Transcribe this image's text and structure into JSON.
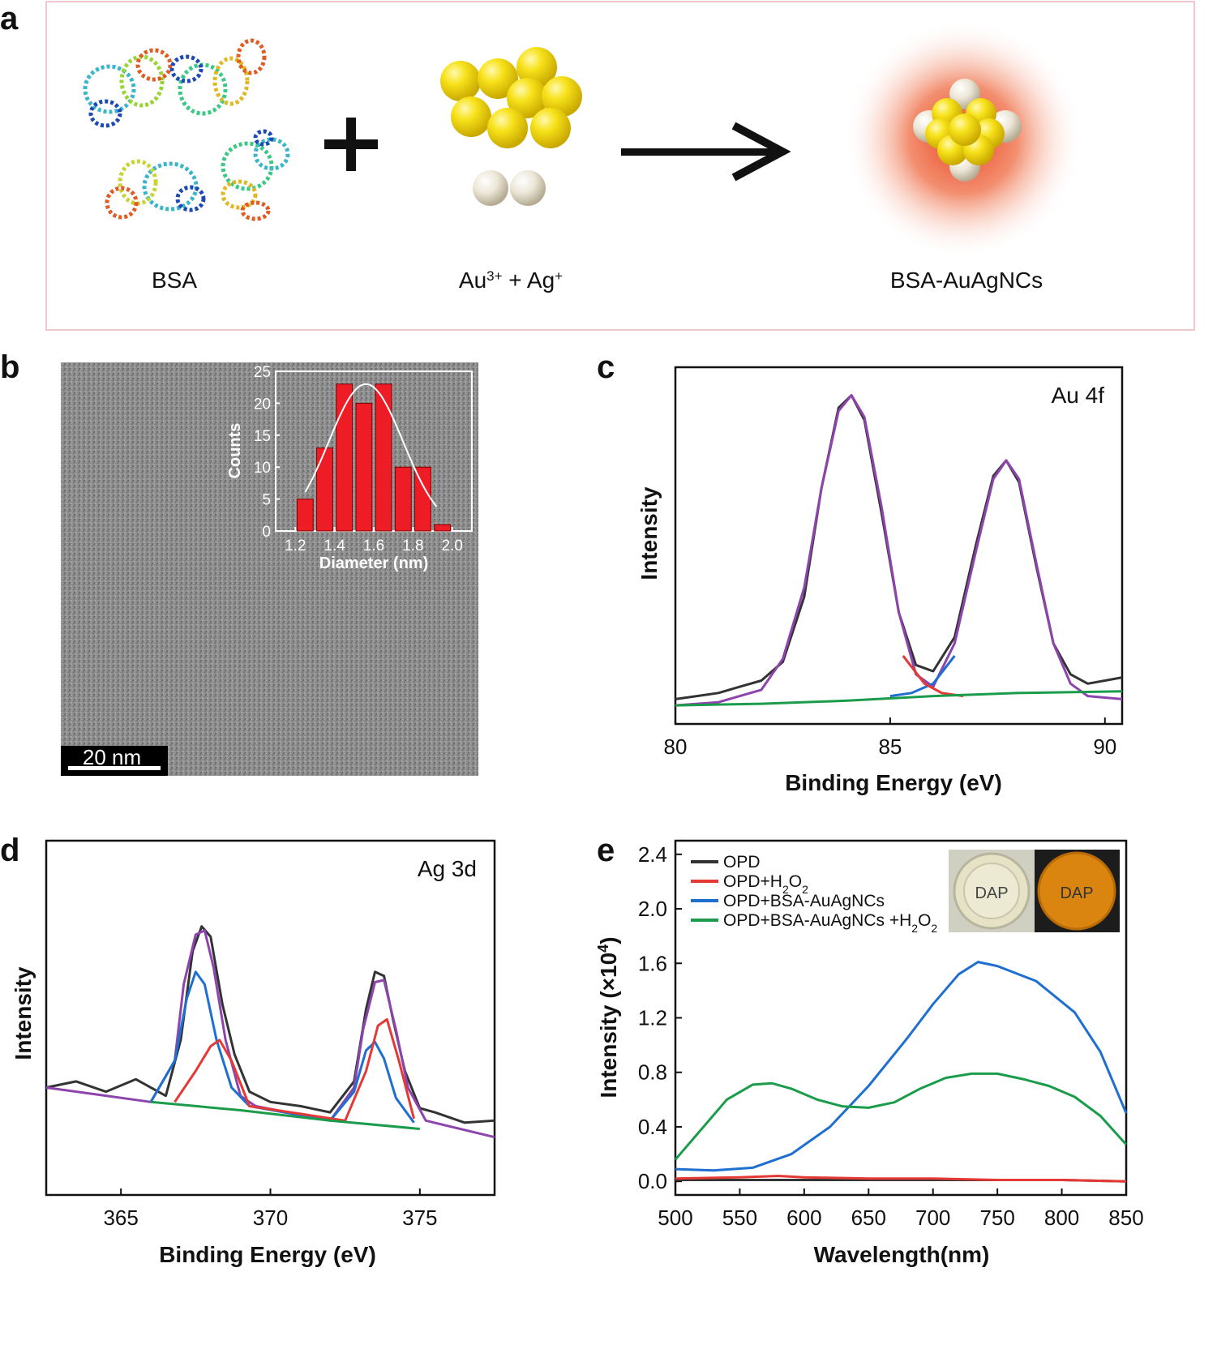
{
  "panel_a": {
    "label": "a",
    "bsa_label": "BSA",
    "ions_label": {
      "au": "Au",
      "au_charge": "3+",
      "plus": " + Ag",
      "ag_charge": "+"
    },
    "product_label": "BSA-AuAgNCs"
  },
  "panel_b": {
    "label": "b",
    "scale_bar": "20 nm"
  },
  "panel_c": {
    "label": "c"
  },
  "panel_d": {
    "label": "d"
  },
  "panel_e": {
    "label": "e",
    "photo_labels": [
      "DAP",
      "DAP"
    ]
  },
  "chart_data": [
    {
      "panel": "b-inset",
      "type": "bar",
      "x": [
        1.25,
        1.35,
        1.45,
        1.55,
        1.65,
        1.75,
        1.85,
        1.95
      ],
      "values": [
        5,
        13,
        23,
        20,
        23,
        10,
        10,
        1
      ],
      "bar_color": "#ee1c25",
      "fit_curve": {
        "type": "gaussian",
        "color": "#ffffff",
        "peak": 23,
        "center": 1.56,
        "sigma": 0.19
      },
      "xlabel": "Diameter (nm)",
      "ylabel": "Counts",
      "xlim": [
        1.1,
        2.1
      ],
      "ylim": [
        0,
        25
      ],
      "xticks": [
        "1.2",
        "1.4",
        "1.6",
        "1.8",
        "2.0"
      ],
      "yticks": [
        "0",
        "5",
        "10",
        "15",
        "20",
        "25"
      ]
    },
    {
      "panel": "c",
      "type": "line",
      "annotation": "Au 4f",
      "xlabel": "Binding Energy (eV)",
      "ylabel": "Intensity",
      "xlim": [
        80,
        90.4
      ],
      "xticks": [
        "80",
        "85",
        "90"
      ],
      "series": [
        {
          "color": "#333333",
          "x": [
            80.0,
            80.5,
            81.0,
            81.5,
            82.0,
            82.5,
            83.0,
            83.4,
            83.8,
            84.1,
            84.4,
            84.8,
            85.2,
            85.6,
            86.0,
            86.5,
            87.0,
            87.4,
            87.7,
            88.0,
            88.4,
            88.8,
            89.2,
            89.6,
            90.0,
            90.4
          ],
          "values": [
            0.02,
            0.03,
            0.04,
            0.06,
            0.08,
            0.14,
            0.35,
            0.7,
            0.96,
            1.0,
            0.92,
            0.62,
            0.3,
            0.13,
            0.11,
            0.22,
            0.52,
            0.74,
            0.79,
            0.72,
            0.45,
            0.2,
            0.1,
            0.07,
            0.08,
            0.09
          ]
        },
        {
          "color": "#8e44ad",
          "x": [
            80.0,
            81.0,
            82.0,
            82.5,
            83.0,
            83.4,
            83.8,
            84.1,
            84.4,
            84.8,
            85.2,
            85.6,
            86.0,
            86.5,
            87.0,
            87.4,
            87.7,
            88.0,
            88.4,
            88.8,
            89.2,
            89.6,
            90.4
          ],
          "values": [
            0.0,
            0.01,
            0.05,
            0.15,
            0.38,
            0.7,
            0.95,
            1.0,
            0.93,
            0.64,
            0.3,
            0.1,
            0.06,
            0.2,
            0.5,
            0.73,
            0.79,
            0.73,
            0.46,
            0.2,
            0.07,
            0.03,
            0.02
          ]
        },
        {
          "color": "#1f6fd1",
          "x": [
            85.0,
            85.5,
            86.0,
            86.5
          ],
          "values": [
            0.03,
            0.04,
            0.07,
            0.16
          ]
        },
        {
          "color": "#e53935",
          "x": [
            85.3,
            85.8,
            86.2,
            86.7
          ],
          "values": [
            0.16,
            0.07,
            0.04,
            0.03
          ]
        },
        {
          "color": "#1a9c4b",
          "x": [
            80.0,
            82.0,
            84.0,
            86.0,
            88.0,
            90.4
          ],
          "values": [
            0.0,
            0.005,
            0.015,
            0.03,
            0.04,
            0.045
          ]
        }
      ]
    },
    {
      "panel": "d",
      "type": "line",
      "annotation": "Ag 3d",
      "xlabel": "Binding Energy (eV)",
      "ylabel": "Intensity",
      "xlim": [
        362.5,
        377.5
      ],
      "xticks": [
        "365",
        "370",
        "375"
      ],
      "series": [
        {
          "color": "#333333",
          "x": [
            362.5,
            363.5,
            364.5,
            365.5,
            366.5,
            367.0,
            367.4,
            367.7,
            368.0,
            368.4,
            368.8,
            369.3,
            370.0,
            371.0,
            372.0,
            372.8,
            373.2,
            373.5,
            373.8,
            374.1,
            374.5,
            375.0,
            375.5,
            376.5,
            377.5
          ],
          "values": [
            0.22,
            0.25,
            0.2,
            0.26,
            0.18,
            0.45,
            0.88,
            1.0,
            0.95,
            0.62,
            0.38,
            0.2,
            0.15,
            0.13,
            0.1,
            0.25,
            0.6,
            0.78,
            0.76,
            0.55,
            0.3,
            0.12,
            0.1,
            0.05,
            0.06
          ]
        },
        {
          "color": "#8e44ad",
          "x": [
            362.5,
            366.0,
            366.8,
            367.1,
            367.5,
            367.8,
            368.1,
            368.5,
            369.0,
            369.5,
            372.0,
            372.8,
            373.1,
            373.5,
            373.8,
            374.2,
            374.6,
            375.2,
            377.5
          ],
          "values": [
            0.22,
            0.15,
            0.35,
            0.72,
            0.96,
            0.98,
            0.8,
            0.45,
            0.18,
            0.13,
            0.06,
            0.22,
            0.5,
            0.73,
            0.74,
            0.5,
            0.22,
            0.06,
            -0.02
          ]
        },
        {
          "color": "#1f6fd1",
          "x": [
            366.0,
            366.8,
            367.2,
            367.5,
            367.8,
            368.2,
            368.7,
            369.3,
            372.0,
            372.8,
            373.2,
            373.5,
            373.8,
            374.2,
            374.8
          ],
          "values": [
            0.15,
            0.35,
            0.65,
            0.78,
            0.72,
            0.45,
            0.22,
            0.13,
            0.06,
            0.2,
            0.4,
            0.44,
            0.36,
            0.17,
            0.05
          ]
        },
        {
          "color": "#e53935",
          "x": [
            366.8,
            367.5,
            368.0,
            368.3,
            368.7,
            369.3,
            372.5,
            373.2,
            373.6,
            373.9,
            374.3,
            374.8
          ],
          "values": [
            0.15,
            0.3,
            0.42,
            0.45,
            0.35,
            0.13,
            0.06,
            0.3,
            0.52,
            0.55,
            0.35,
            0.07
          ]
        },
        {
          "color": "#1a9c4b",
          "x": [
            366.0,
            369.0,
            372.0,
            375.0
          ],
          "values": [
            0.15,
            0.11,
            0.06,
            0.02
          ]
        }
      ]
    },
    {
      "panel": "e",
      "type": "line",
      "xlabel": "Wavelength(nm)",
      "ylabel": "Intensity (×10",
      "ylabel_sup": "4",
      "ylabel_end": ")",
      "xlim": [
        500,
        850
      ],
      "ylim": [
        -0.1,
        2.5
      ],
      "xticks": [
        "500",
        "550",
        "600",
        "650",
        "700",
        "750",
        "800",
        "850"
      ],
      "yticks": [
        "0.0",
        "0.4",
        "0.8",
        "1.2",
        "1.6",
        "2.0",
        "2.4"
      ],
      "legend": "top-left",
      "series": [
        {
          "name": "OPD",
          "color": "#333333",
          "x": [
            500,
            550,
            600,
            650,
            700,
            750,
            800,
            850
          ],
          "values": [
            0.01,
            0.01,
            0.01,
            0.01,
            0.01,
            0.01,
            0.01,
            0.0
          ]
        },
        {
          "name": "OPD+H",
          "name_sub": "2",
          "name_end": "O",
          "name_sub2": "2",
          "color": "#e53935",
          "x": [
            500,
            550,
            580,
            600,
            650,
            700,
            750,
            800,
            850
          ],
          "values": [
            0.02,
            0.03,
            0.04,
            0.03,
            0.02,
            0.02,
            0.01,
            0.01,
            0.0
          ]
        },
        {
          "name": "OPD+BSA-AuAgNCs",
          "color": "#1f6fd1",
          "x": [
            500,
            530,
            560,
            590,
            620,
            650,
            680,
            700,
            720,
            735,
            750,
            780,
            810,
            830,
            850
          ],
          "values": [
            0.09,
            0.08,
            0.1,
            0.2,
            0.4,
            0.7,
            1.05,
            1.3,
            1.52,
            1.61,
            1.58,
            1.47,
            1.24,
            0.95,
            0.5
          ]
        },
        {
          "name": "OPD+BSA-AuAgNCs +H",
          "name_sub": "2",
          "name_end": "O",
          "name_sub2": "2",
          "color": "#1a9c4b",
          "x": [
            500,
            520,
            540,
            560,
            575,
            590,
            610,
            630,
            650,
            670,
            690,
            710,
            730,
            750,
            770,
            790,
            810,
            830,
            850
          ],
          "values": [
            0.16,
            0.38,
            0.6,
            0.71,
            0.72,
            0.68,
            0.6,
            0.55,
            0.54,
            0.58,
            0.68,
            0.76,
            0.79,
            0.79,
            0.75,
            0.7,
            0.62,
            0.48,
            0.27
          ]
        }
      ]
    }
  ]
}
